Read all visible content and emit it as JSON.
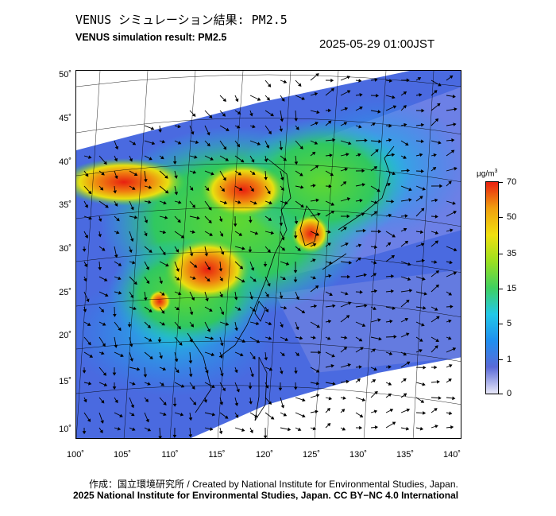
{
  "title_jp": "VENUS シミュレーション結果: PM2.5",
  "title_en": "VENUS simulation result: PM2.5",
  "timestamp": "2025-05-29 01:00JST",
  "map": {
    "lat_labels": [
      "50˚",
      "45˚",
      "40˚",
      "35˚",
      "30˚",
      "25˚",
      "20˚",
      "15˚",
      "10˚"
    ],
    "lon_labels": [
      "100˚",
      "105˚",
      "110˚",
      "115˚",
      "120˚",
      "125˚",
      "130˚",
      "135˚",
      "140˚"
    ]
  },
  "colorbar": {
    "unit_base": "μg/m",
    "unit_exp": "3",
    "ticks": [
      "70",
      "50",
      "35",
      "15",
      "5",
      "1",
      "0"
    ],
    "colors": [
      "#e8e8f8",
      "#5a6ad8",
      "#1f8ff0",
      "#22c8e8",
      "#3fd060",
      "#9be020",
      "#f0e010",
      "#f0a010",
      "#e82010"
    ]
  },
  "footer": {
    "credit": "作成：国立環境研究所 / Created by National Institute for Environmental Studies, Japan.",
    "copyright": "2025 National Institute for Environmental Studies, Japan. CC BY−NC 4.0 International"
  }
}
